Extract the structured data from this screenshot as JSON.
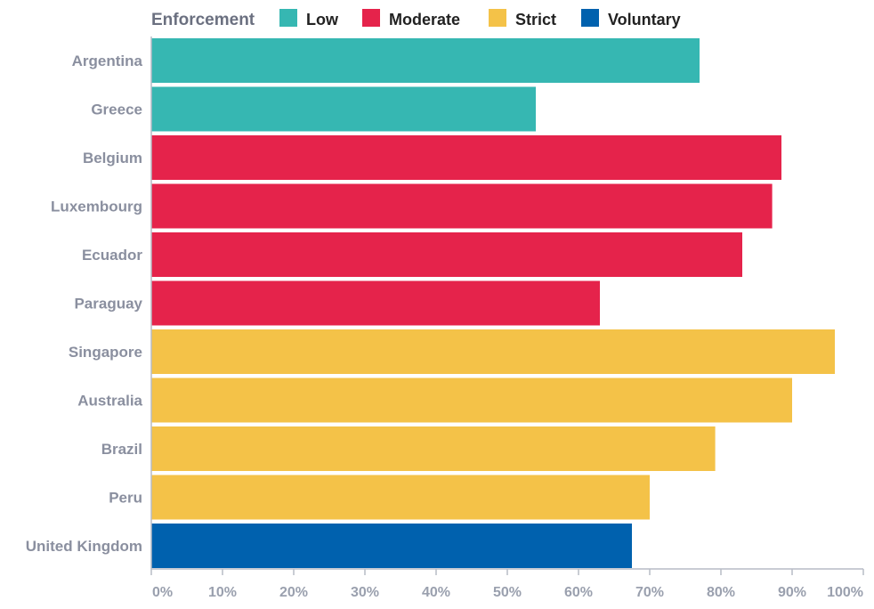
{
  "chart_data": {
    "type": "bar",
    "orientation": "horizontal",
    "title": "",
    "xlabel": "",
    "ylabel": "",
    "xlim": [
      0,
      100
    ],
    "x_ticks": [
      "0%",
      "10%",
      "20%",
      "30%",
      "40%",
      "50%",
      "60%",
      "70%",
      "80%",
      "90%",
      "100%"
    ],
    "legend": {
      "title": "Enforcement",
      "placement": "top",
      "entries": [
        {
          "name": "Low",
          "color": "#36b7b2"
        },
        {
          "name": "Moderate",
          "color": "#e5234b"
        },
        {
          "name": "Strict",
          "color": "#f4c248"
        },
        {
          "name": "Voluntary",
          "color": "#0061ae"
        }
      ]
    },
    "categories": [
      "Argentina",
      "Greece",
      "Belgium",
      "Luxembourg",
      "Ecuador",
      "Paraguay",
      "Singapore",
      "Australia",
      "Brazil",
      "Peru",
      "United Kingdom"
    ],
    "values": [
      77,
      54,
      88.5,
      87.2,
      83,
      63,
      96,
      90,
      79.2,
      70,
      67.5
    ],
    "groups": [
      "Low",
      "Low",
      "Moderate",
      "Moderate",
      "Moderate",
      "Moderate",
      "Strict",
      "Strict",
      "Strict",
      "Strict",
      "Voluntary"
    ],
    "grid": false
  }
}
